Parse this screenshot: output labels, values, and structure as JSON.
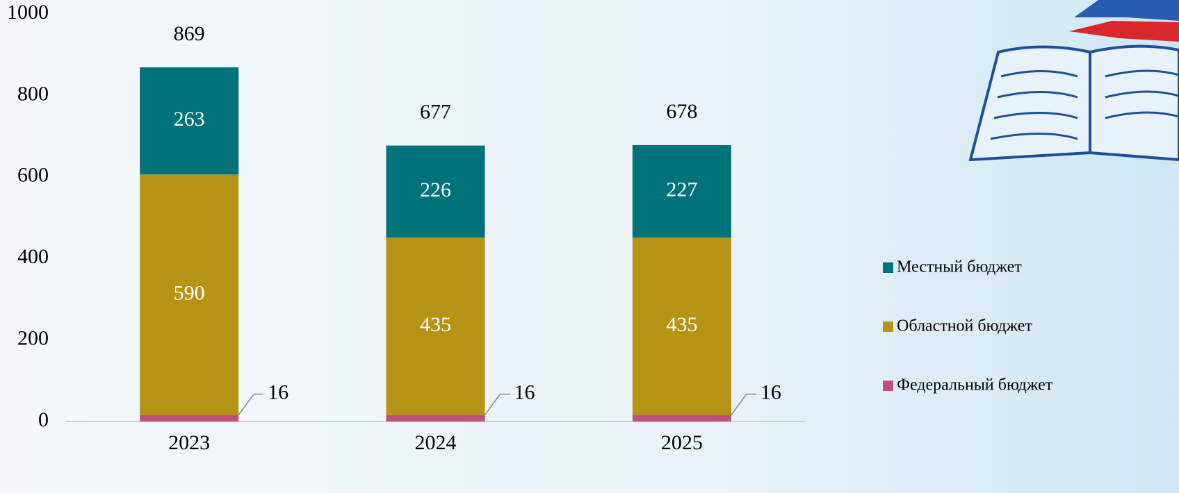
{
  "chart_data": {
    "type": "stacked_bar",
    "categories": [
      "2023",
      "2024",
      "2025"
    ],
    "series": [
      {
        "name": "Федеральный бюджет",
        "color": "#c0507a",
        "values": [
          16,
          16,
          16
        ]
      },
      {
        "name": "Областной бюджет",
        "color": "#b59315",
        "values": [
          590,
          435,
          435
        ]
      },
      {
        "name": "Местный бюджет",
        "color": "#00737a",
        "values": [
          263,
          226,
          227
        ]
      }
    ],
    "totals": [
      869,
      677,
      678
    ],
    "ylim": [
      0,
      1000
    ],
    "yticks": [
      0,
      200,
      400,
      600,
      800,
      1000
    ],
    "grid": false,
    "legend": "right"
  }
}
